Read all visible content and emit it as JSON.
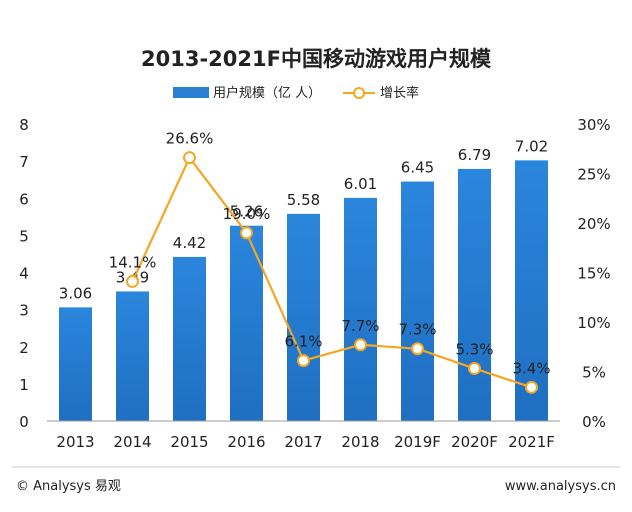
{
  "chart_data": {
    "type": "bar+line",
    "title": "2013-2021F中国移动游戏用户规模",
    "categories": [
      "2013",
      "2014",
      "2015",
      "2016",
      "2017",
      "2018",
      "2019F",
      "2020F",
      "2021F"
    ],
    "series": [
      {
        "name": "用户规模（亿 人）",
        "type": "bar",
        "axis": "left",
        "values": [
          3.06,
          3.49,
          4.42,
          5.26,
          5.58,
          6.01,
          6.45,
          6.79,
          7.02
        ],
        "labels": [
          "3.06",
          "3.49",
          "4.42",
          "5.26",
          "5.58",
          "6.01",
          "6.45",
          "6.79",
          "7.02"
        ],
        "color": "#2a7fd4"
      },
      {
        "name": "增长率",
        "type": "line",
        "axis": "right",
        "values": [
          null,
          14.1,
          26.6,
          19.0,
          6.1,
          7.7,
          7.3,
          5.3,
          3.4
        ],
        "labels": [
          "",
          "14.1%",
          "26.6%",
          "19.0%",
          "6.1%",
          "7.7%",
          "7.3%",
          "5.3%",
          "3.4%"
        ],
        "color": "#f5a623"
      }
    ],
    "y_left": {
      "min": 0,
      "max": 8,
      "ticks": [
        "0",
        "1",
        "2",
        "3",
        "4",
        "5",
        "6",
        "7",
        "8"
      ]
    },
    "y_right": {
      "min": 0,
      "max": 30,
      "ticks": [
        "0%",
        "5%",
        "10%",
        "15%",
        "20%",
        "25%",
        "30%"
      ]
    },
    "legend_position": "top-center",
    "grid": false
  },
  "footer": {
    "source": "© Analysys 易观",
    "url": "www.analysys.cn"
  }
}
